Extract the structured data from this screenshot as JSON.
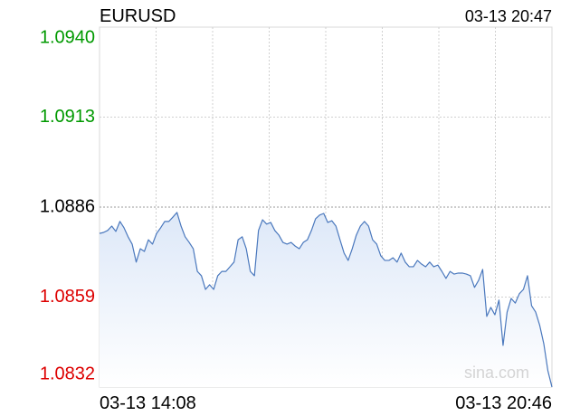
{
  "chart_data": {
    "type": "line",
    "title": "EURUSD",
    "timestamp": "03-13 20:47",
    "watermark": "sina.com",
    "categories": [
      "03-13 14:08",
      null,
      null,
      null,
      null,
      null,
      null,
      null,
      null,
      null,
      null,
      null,
      null,
      null,
      null,
      null,
      null,
      null,
      null,
      null,
      null,
      null,
      null,
      null,
      null,
      null,
      null,
      null,
      null,
      null,
      null,
      null,
      null,
      null,
      null,
      null,
      null,
      null,
      null,
      null,
      null,
      null,
      null,
      null,
      null,
      null,
      null,
      null,
      null,
      null,
      null,
      null,
      null,
      null,
      null,
      null,
      null,
      null,
      null,
      null,
      null,
      null,
      null,
      null,
      null,
      null,
      null,
      null,
      null,
      null,
      null,
      null,
      null,
      null,
      null,
      null,
      null,
      null,
      null,
      null,
      null,
      null,
      null,
      null,
      null,
      null,
      null,
      null,
      null,
      null,
      null,
      null,
      null,
      null,
      null,
      null,
      null,
      null,
      null,
      null,
      null,
      null,
      null,
      null,
      null,
      null,
      null,
      null,
      null,
      null,
      null,
      "03-13 20:46"
    ],
    "series": [
      {
        "name": "EURUSD",
        "color": "#4a78bd",
        "values": [
          1.08781,
          1.08784,
          1.0879,
          1.08803,
          1.08787,
          1.08817,
          1.08798,
          1.08771,
          1.08749,
          1.08695,
          1.08735,
          1.08727,
          1.08762,
          1.08749,
          1.08781,
          1.08798,
          1.08817,
          1.08817,
          1.0883,
          1.08844,
          1.08803,
          1.08771,
          1.08754,
          1.08735,
          1.08667,
          1.08654,
          1.08613,
          1.08627,
          1.08613,
          1.08654,
          1.08667,
          1.08667,
          1.08681,
          1.08695,
          1.08762,
          1.08771,
          1.08735,
          1.08667,
          1.08654,
          1.0879,
          1.08822,
          1.08809,
          1.08814,
          1.0879,
          1.08776,
          1.08754,
          1.08749,
          1.08754,
          1.08743,
          1.08735,
          1.08754,
          1.08762,
          1.0879,
          1.08825,
          1.08836,
          1.08841,
          1.08814,
          1.08819,
          1.08803,
          1.08762,
          1.08722,
          1.087,
          1.08735,
          1.08776,
          1.08803,
          1.08817,
          1.08803,
          1.08762,
          1.08749,
          1.08714,
          1.087,
          1.087,
          1.08708,
          1.08695,
          1.08722,
          1.08695,
          1.08681,
          1.08681,
          1.087,
          1.08689,
          1.08681,
          1.08695,
          1.08681,
          1.08686,
          1.08667,
          1.08646,
          1.08667,
          1.08659,
          1.08662,
          1.08662,
          1.08659,
          1.08654,
          1.08619,
          1.0864,
          1.08673,
          1.08532,
          1.08559,
          1.08537,
          1.08581,
          1.08445,
          1.08545,
          1.08586,
          1.08572,
          1.086,
          1.08613,
          1.08654,
          1.08564,
          1.08545,
          1.08505,
          1.0845,
          1.08369,
          1.0832
        ]
      }
    ],
    "ylim": [
      1.0832,
      1.094
    ],
    "yticks": [
      {
        "value": 1.094,
        "label": "1.0940"
      },
      1.0913,
      1.0886,
      1.0859,
      1.0832
    ],
    "ytick_colors": [
      "#009900",
      "#009900",
      "#000000",
      "#dd0000",
      "#dd0000"
    ],
    "grid": true
  }
}
